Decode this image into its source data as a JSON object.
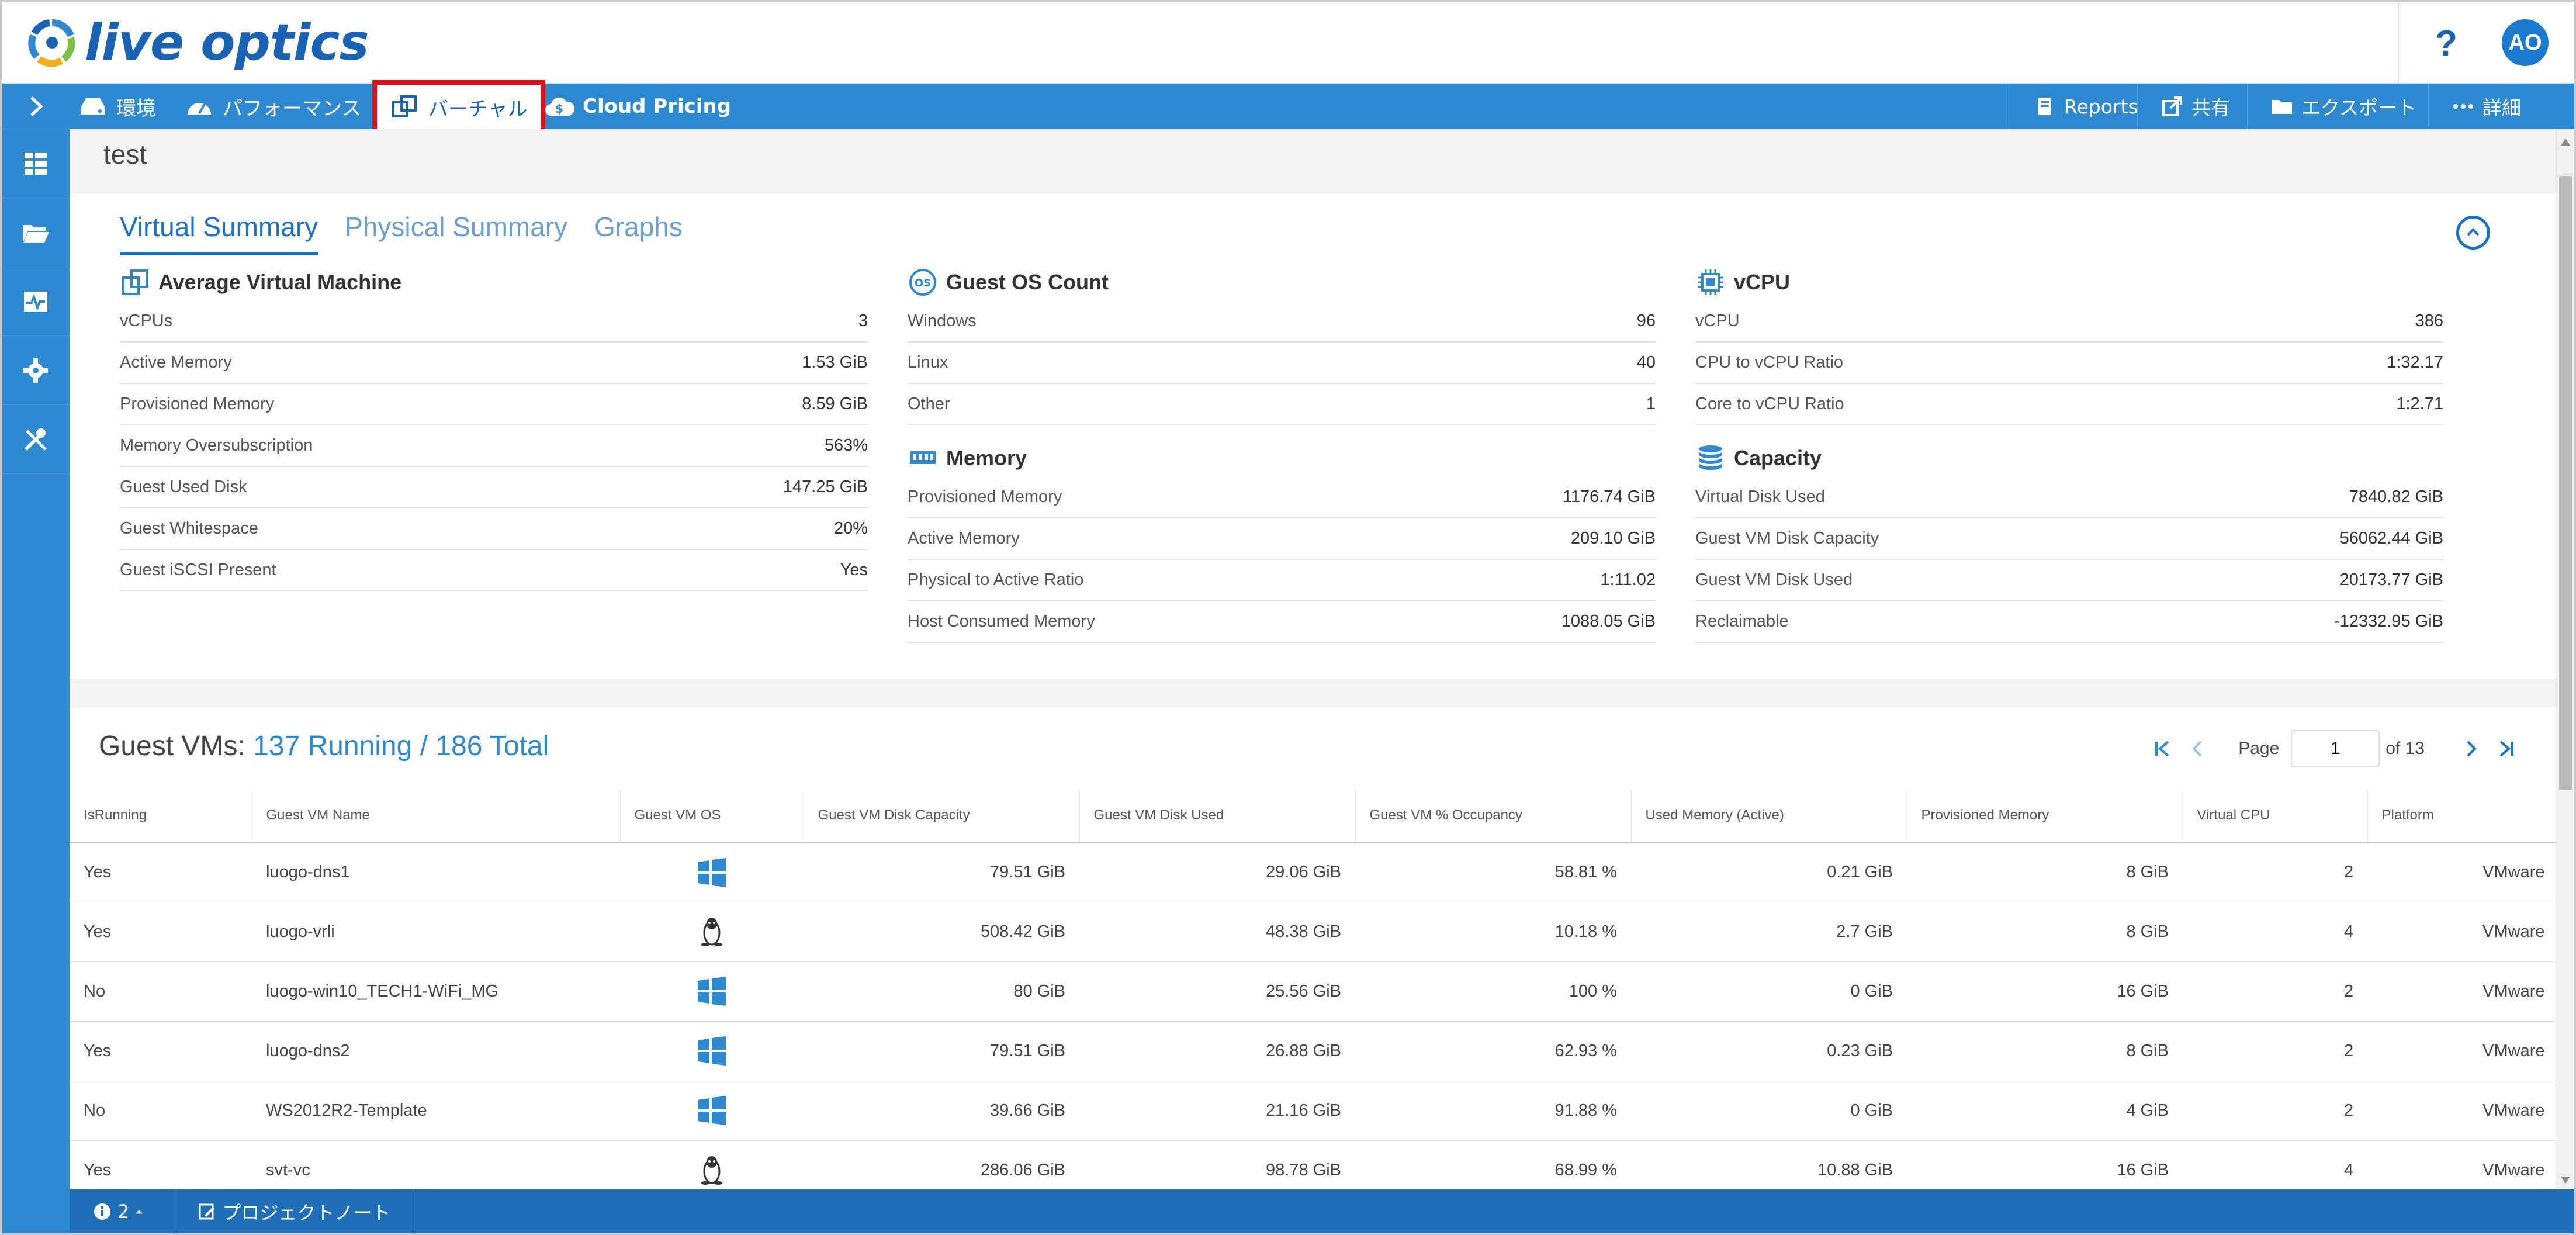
{
  "app": {
    "logo_text": "live optics",
    "help_label": "?",
    "avatar_initials": "AO"
  },
  "nav": {
    "items": [
      {
        "label": "環境",
        "icon": "server-icon"
      },
      {
        "label": "パフォーマンス",
        "icon": "gauge-icon"
      },
      {
        "label": "バーチャル",
        "icon": "virtual-icon",
        "active": true
      },
      {
        "label": "Cloud Pricing",
        "icon": "cloud-dollar-icon"
      }
    ],
    "right_items": [
      {
        "label": "Reports",
        "icon": "report-icon"
      },
      {
        "label": "共有",
        "icon": "share-icon"
      },
      {
        "label": "エクスポート",
        "icon": "folder-icon"
      },
      {
        "label": "詳細",
        "icon": "more-icon"
      }
    ]
  },
  "page": {
    "title": "test"
  },
  "summary": {
    "tabs": [
      "Virtual Summary",
      "Physical Summary",
      "Graphs"
    ],
    "avg_vm": {
      "title": "Average Virtual Machine",
      "rows": [
        {
          "k": "vCPUs",
          "v": "3"
        },
        {
          "k": "Active Memory",
          "v": "1.53 GiB"
        },
        {
          "k": "Provisioned Memory",
          "v": "8.59 GiB"
        },
        {
          "k": "Memory Oversubscription",
          "v": "563%"
        },
        {
          "k": "Guest Used Disk",
          "v": "147.25 GiB"
        },
        {
          "k": "Guest Whitespace",
          "v": "20%"
        },
        {
          "k": "Guest iSCSI Present",
          "v": "Yes"
        }
      ]
    },
    "guest_os": {
      "title": "Guest OS Count",
      "rows": [
        {
          "k": "Windows",
          "v": "96"
        },
        {
          "k": "Linux",
          "v": "40"
        },
        {
          "k": "Other",
          "v": "1"
        }
      ]
    },
    "memory": {
      "title": "Memory",
      "rows": [
        {
          "k": "Provisioned Memory",
          "v": "1176.74 GiB"
        },
        {
          "k": "Active Memory",
          "v": "209.10 GiB"
        },
        {
          "k": "Physical to Active Ratio",
          "v": "1:11.02"
        },
        {
          "k": "Host Consumed Memory",
          "v": "1088.05 GiB"
        }
      ]
    },
    "vcpu": {
      "title": "vCPU",
      "rows": [
        {
          "k": "vCPU",
          "v": "386"
        },
        {
          "k": "CPU to vCPU Ratio",
          "v": "1:32.17"
        },
        {
          "k": "Core to vCPU Ratio",
          "v": "1:2.71"
        }
      ]
    },
    "capacity": {
      "title": "Capacity",
      "rows": [
        {
          "k": "Virtual Disk Used",
          "v": "7840.82 GiB"
        },
        {
          "k": "Guest VM Disk Capacity",
          "v": "56062.44 GiB"
        },
        {
          "k": "Guest VM Disk Used",
          "v": "20173.77 GiB"
        },
        {
          "k": "Reclaimable",
          "v": "-12332.95 GiB"
        }
      ]
    }
  },
  "vms": {
    "title_prefix": "Guest VMs: ",
    "title_counts": "137 Running / 186 Total",
    "pager": {
      "page_label": "Page",
      "page_value": "1",
      "of_label": "of 13"
    },
    "columns": [
      "IsRunning",
      "Guest VM Name",
      "Guest VM OS",
      "Guest VM Disk Capacity",
      "Guest VM Disk Used",
      "Guest VM % Occupancy",
      "Used Memory (Active)",
      "Provisioned Memory",
      "Virtual CPU",
      "Platform"
    ],
    "rows": [
      {
        "running": "Yes",
        "name": "luogo-dns1",
        "os": "windows-icon",
        "cap": "79.51 GiB",
        "used": "29.06 GiB",
        "occ": "58.81 %",
        "mem": "0.21 GiB",
        "prov": "8 GiB",
        "cpu": "2",
        "plat": "VMware"
      },
      {
        "running": "Yes",
        "name": "luogo-vrli",
        "os": "linux-icon",
        "cap": "508.42 GiB",
        "used": "48.38 GiB",
        "occ": "10.18 %",
        "mem": "2.7 GiB",
        "prov": "8 GiB",
        "cpu": "4",
        "plat": "VMware"
      },
      {
        "running": "No",
        "name": "luogo-win10_TECH1-WiFi_MG",
        "os": "windows-icon",
        "cap": "80 GiB",
        "used": "25.56 GiB",
        "occ": "100 %",
        "mem": "0 GiB",
        "prov": "16 GiB",
        "cpu": "2",
        "plat": "VMware"
      },
      {
        "running": "Yes",
        "name": "luogo-dns2",
        "os": "windows-icon",
        "cap": "79.51 GiB",
        "used": "26.88 GiB",
        "occ": "62.93 %",
        "mem": "0.23 GiB",
        "prov": "8 GiB",
        "cpu": "2",
        "plat": "VMware"
      },
      {
        "running": "No",
        "name": "WS2012R2-Template",
        "os": "windows-icon",
        "cap": "39.66 GiB",
        "used": "21.16 GiB",
        "occ": "91.88 %",
        "mem": "0 GiB",
        "prov": "4 GiB",
        "cpu": "2",
        "plat": "VMware"
      },
      {
        "running": "Yes",
        "name": "svt-vc",
        "os": "linux-icon",
        "cap": "286.06 GiB",
        "used": "98.78 GiB",
        "occ": "68.99 %",
        "mem": "10.88 GiB",
        "prov": "16 GiB",
        "cpu": "4",
        "plat": "VMware"
      }
    ]
  },
  "bottom": {
    "info_count": "2",
    "project_note": "プロジェクトノート"
  },
  "colors": {
    "brand": "#1a63b4",
    "bar": "#2f89d1",
    "highlight": "#e0101a"
  }
}
